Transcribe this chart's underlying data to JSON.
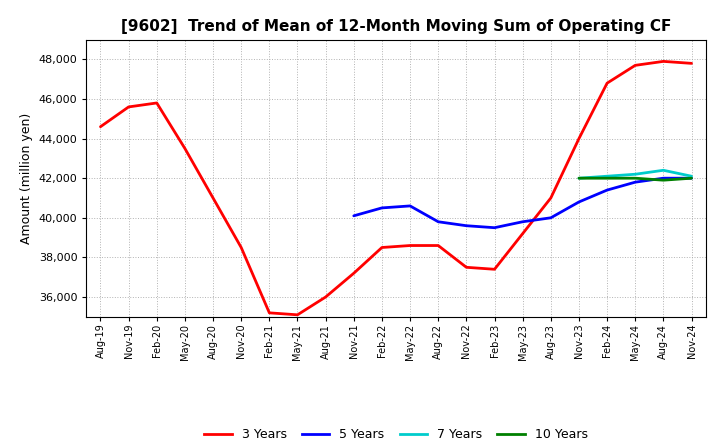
{
  "title": "[9602]  Trend of Mean of 12-Month Moving Sum of Operating CF",
  "ylabel": "Amount (million yen)",
  "background_color": "#ffffff",
  "grid_color": "#aaaaaa",
  "x_labels": [
    "Aug-19",
    "Nov-19",
    "Feb-20",
    "May-20",
    "Aug-20",
    "Nov-20",
    "Feb-21",
    "May-21",
    "Aug-21",
    "Nov-21",
    "Feb-22",
    "May-22",
    "Aug-22",
    "Nov-22",
    "Feb-23",
    "May-23",
    "Aug-23",
    "Nov-23",
    "Feb-24",
    "May-24",
    "Aug-24",
    "Nov-24"
  ],
  "ylim": [
    35000,
    49000
  ],
  "yticks": [
    36000,
    38000,
    40000,
    42000,
    44000,
    46000,
    48000
  ],
  "series": {
    "3 Years": {
      "color": "#ff0000",
      "linewidth": 2.0,
      "x_indices": [
        0,
        1,
        2,
        3,
        4,
        5,
        6,
        7,
        8,
        9,
        10,
        11,
        12,
        13,
        14,
        15,
        16,
        17,
        18,
        19,
        20,
        21
      ],
      "values": [
        44600,
        45600,
        45800,
        43500,
        41000,
        38500,
        35200,
        35100,
        36000,
        37200,
        38500,
        38600,
        38600,
        37500,
        37400,
        39200,
        41000,
        44000,
        46800,
        47700,
        47900,
        47800
      ]
    },
    "5 Years": {
      "color": "#0000ff",
      "linewidth": 2.0,
      "x_indices": [
        9,
        10,
        11,
        12,
        13,
        14,
        15,
        16,
        17,
        18,
        19,
        20,
        21
      ],
      "values": [
        40100,
        40500,
        40600,
        39800,
        39600,
        39500,
        39800,
        40000,
        40800,
        41400,
        41800,
        42000,
        42000
      ]
    },
    "7 Years": {
      "color": "#00cccc",
      "linewidth": 2.0,
      "x_indices": [
        17,
        18,
        19,
        20,
        21
      ],
      "values": [
        42000,
        42100,
        42200,
        42400,
        42100
      ]
    },
    "10 Years": {
      "color": "#008000",
      "linewidth": 2.0,
      "x_indices": [
        17,
        18,
        19,
        20,
        21
      ],
      "values": [
        42000,
        42000,
        42000,
        41900,
        42000
      ]
    }
  },
  "legend": {
    "labels": [
      "3 Years",
      "5 Years",
      "7 Years",
      "10 Years"
    ],
    "colors": [
      "#ff0000",
      "#0000ff",
      "#00cccc",
      "#008000"
    ]
  }
}
